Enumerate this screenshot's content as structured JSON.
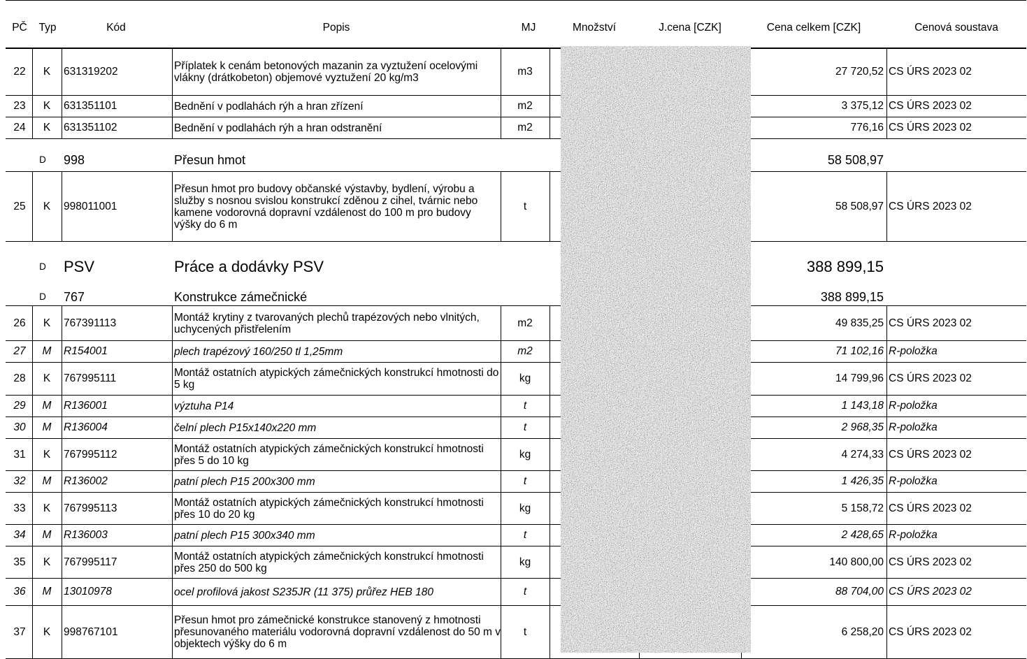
{
  "headers": {
    "pc": "PČ",
    "typ": "Typ",
    "kod": "Kód",
    "popis": "Popis",
    "mj": "MJ",
    "mnozstvi": "Množství",
    "jcena": "J.cena [CZK]",
    "cena": "Cena celkem [CZK]",
    "soustava": "Cenová soustava"
  },
  "rows": [
    {
      "pc": "22",
      "typ": "K",
      "kod": "631319202",
      "popis": "Příplatek k cenám betonových mazanin za vyztužení ocelovými vlákny (drátkobeton) objemové vyztužení 20 kg/m3",
      "mj": "m3",
      "cena": "27 720,52",
      "soustava": "CS ÚRS 2023 02"
    },
    {
      "pc": "23",
      "typ": "K",
      "kod": "631351101",
      "popis": "Bednění v podlahách rýh a hran zřízení",
      "mj": "m2",
      "cena": "3 375,12",
      "soustava": "CS ÚRS 2023 02"
    },
    {
      "pc": "24",
      "typ": "K",
      "kod": "631351102",
      "popis": "Bednění v podlahách rýh a hran odstranění",
      "mj": "m2",
      "cena": "776,16",
      "soustava": "CS ÚRS 2023 02"
    },
    {
      "pc": "25",
      "typ": "K",
      "kod": "998011001",
      "popis": "Přesun hmot pro budovy občanské výstavby, bydlení, výrobu a služby s nosnou svislou konstrukcí zděnou z cihel, tvárnic nebo kamene vodorovná dopravní vzdálenost do 100 m pro budovy výšky do 6 m",
      "mj": "t",
      "cena": "58 508,97",
      "soustava": "CS ÚRS 2023 02"
    },
    {
      "pc": "26",
      "typ": "K",
      "kod": "767391113",
      "popis": "Montáž krytiny z tvarovaných plechů trapézových nebo vlnitých, uchycených přistřelením",
      "mj": "m2",
      "cena": "49 835,25",
      "soustava": "CS ÚRS 2023 02"
    },
    {
      "pc": "27",
      "typ": "M",
      "kod": "R154001",
      "popis": "plech trapézový 160/250 tl 1,25mm",
      "mj": "m2",
      "cena": "71 102,16",
      "soustava": "R-položka"
    },
    {
      "pc": "28",
      "typ": "K",
      "kod": "767995111",
      "popis": "Montáž ostatních atypických zámečnických konstrukcí hmotnosti do 5 kg",
      "mj": "kg",
      "cena": "14 799,96",
      "soustava": "CS ÚRS 2023 02"
    },
    {
      "pc": "29",
      "typ": "M",
      "kod": "R136001",
      "popis": "výztuha P14",
      "mj": "t",
      "cena": "1 143,18",
      "soustava": "R-položka"
    },
    {
      "pc": "30",
      "typ": "M",
      "kod": "R136004",
      "popis": "čelní plech P15x140x220 mm",
      "mj": "t",
      "cena": "2 968,35",
      "soustava": "R-položka"
    },
    {
      "pc": "31",
      "typ": "K",
      "kod": "767995112",
      "popis": "Montáž ostatních atypických zámečnických konstrukcí hmotnosti přes 5 do 10 kg",
      "mj": "kg",
      "cena": "4 274,33",
      "soustava": "CS ÚRS 2023 02"
    },
    {
      "pc": "32",
      "typ": "M",
      "kod": "R136002",
      "popis": "patní plech P15 200x300 mm",
      "mj": "t",
      "cena": "1 426,35",
      "soustava": "R-položka"
    },
    {
      "pc": "33",
      "typ": "K",
      "kod": "767995113",
      "popis": "Montáž ostatních atypických zámečnických konstrukcí hmotnosti přes 10 do 20 kg",
      "mj": "kg",
      "cena": "5 158,72",
      "soustava": "CS ÚRS 2023 02"
    },
    {
      "pc": "34",
      "typ": "M",
      "kod": "R136003",
      "popis": "patní plech P15 300x340 mm",
      "mj": "t",
      "cena": "2 428,65",
      "soustava": "R-položka"
    },
    {
      "pc": "35",
      "typ": "K",
      "kod": "767995117",
      "popis": "Montáž ostatních atypických zámečnických konstrukcí hmotnosti přes 250 do 500 kg",
      "mj": "kg",
      "cena": "140 800,00",
      "soustava": "CS ÚRS 2023 02"
    },
    {
      "pc": "36",
      "typ": "M",
      "kod": "13010978",
      "popis": "ocel profilová jakost S235JR (11 375) průřez HEB 180",
      "mj": "t",
      "cena": "88 704,00",
      "soustava": "CS ÚRS 2023 02"
    },
    {
      "pc": "37",
      "typ": "K",
      "kod": "998767101",
      "popis": "Přesun hmot pro zámečnické konstrukce stanovený z hmotnosti přesunovaného materiálu vodorovná dopravní vzdálenost do 50 m v objektech výšky do 6 m",
      "mj": "t",
      "cena": "6 258,20",
      "soustava": "CS ÚRS 2023 02"
    }
  ],
  "sections": [
    {
      "tag": "D",
      "kod": "998",
      "popis": "Přesun hmot",
      "cena": "58 508,97"
    },
    {
      "tag": "D",
      "kod": "PSV",
      "popis": "Práce a dodávky PSV",
      "cena": "388 899,15"
    },
    {
      "tag": "D",
      "kod": "767",
      "popis": "Konstrukce zámečnické",
      "cena": "388 899,15"
    }
  ]
}
